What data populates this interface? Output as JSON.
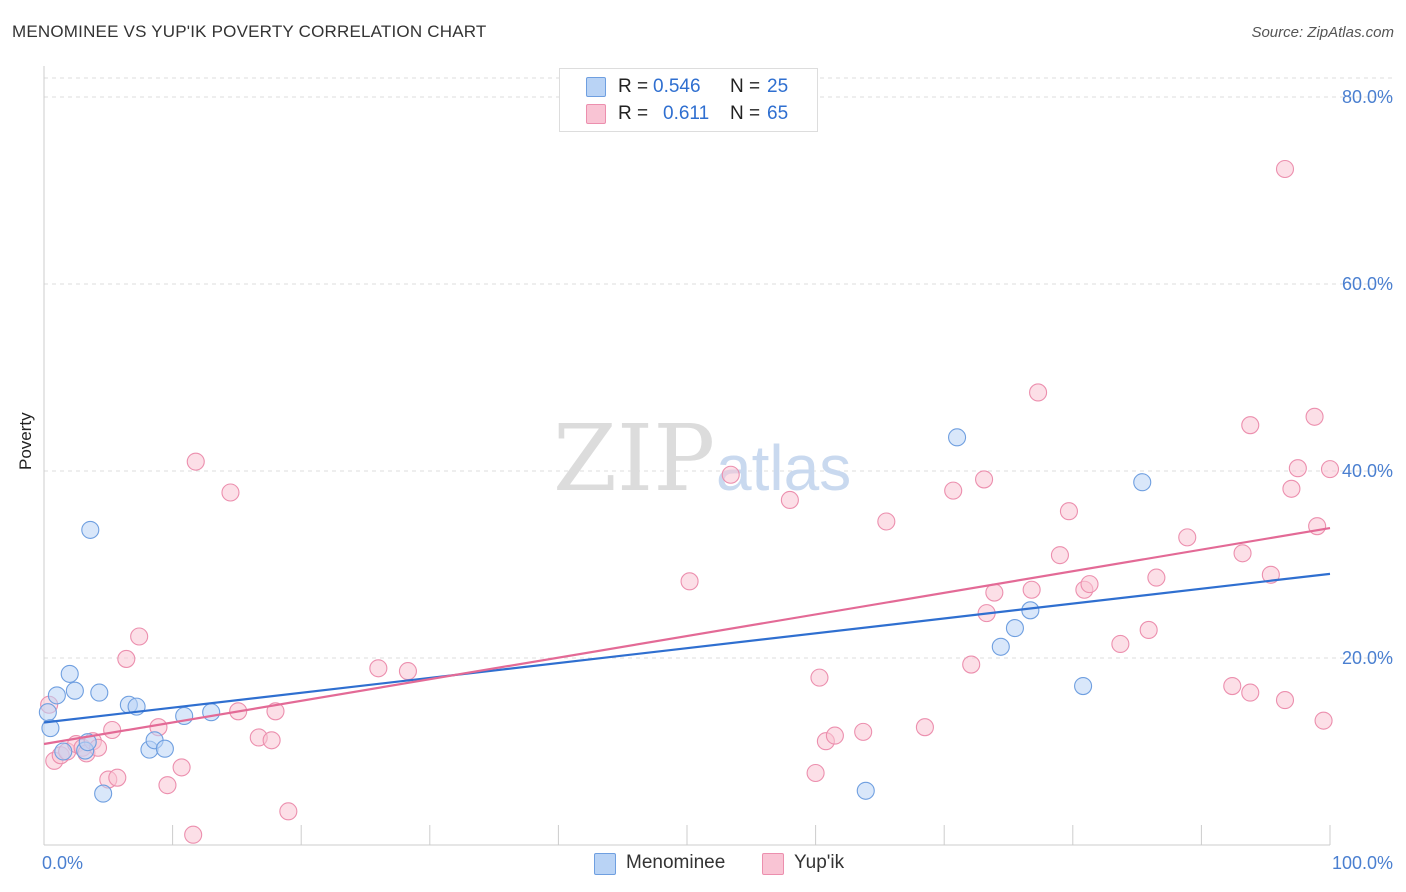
{
  "title": "MENOMINEE VS YUP'IK POVERTY CORRELATION CHART",
  "source": "Source: ZipAtlas.com",
  "watermark": {
    "part1": "ZIP",
    "part2": "atlas"
  },
  "legend": {
    "rows": [
      {
        "r_label": "R =",
        "r_value": "0.546",
        "n_label": "N =",
        "n_value": "25"
      },
      {
        "r_label": "R =",
        "r_value": "0.611",
        "n_label": "N =",
        "n_value": "65"
      }
    ],
    "bottom": [
      {
        "label": "Menominee"
      },
      {
        "label": "Yup'ik"
      }
    ]
  },
  "colors": {
    "menominee_fill": "#b9d3f5",
    "menominee_stroke": "#6f9fe0",
    "menominee_line": "#2f6fd0",
    "yupik_fill": "#f9c4d4",
    "yupik_stroke": "#ec8fae",
    "yupik_line": "#e36a96",
    "tick_label": "#4a7fd0",
    "grid": "#dddddd"
  },
  "chart_data": {
    "type": "scatter",
    "title": "MENOMINEE VS YUP'IK POVERTY CORRELATION CHART",
    "xlabel": "",
    "ylabel": "Poverty",
    "xlim": [
      0,
      100
    ],
    "ylim": [
      0,
      80
    ],
    "x_tick_labels": [
      "0.0%",
      "100.0%"
    ],
    "y_tick_labels": [
      "20.0%",
      "40.0%",
      "60.0%",
      "80.0%"
    ],
    "y_ticks": [
      20,
      40,
      60,
      80
    ],
    "series": [
      {
        "name": "Menominee",
        "r": 0.546,
        "n": 25,
        "trend": {
          "x": [
            0,
            100
          ],
          "y": [
            13.1,
            29.0
          ]
        },
        "points": [
          [
            0.3,
            14.2
          ],
          [
            0.5,
            12.5
          ],
          [
            1.0,
            16.0
          ],
          [
            2.0,
            18.3
          ],
          [
            2.4,
            16.5
          ],
          [
            1.5,
            10.0
          ],
          [
            3.2,
            10.1
          ],
          [
            3.4,
            11.0
          ],
          [
            3.6,
            33.7
          ],
          [
            4.3,
            16.3
          ],
          [
            4.6,
            5.5
          ],
          [
            6.6,
            15.0
          ],
          [
            7.2,
            14.8
          ],
          [
            8.2,
            10.2
          ],
          [
            8.6,
            11.2
          ],
          [
            9.4,
            10.3
          ],
          [
            10.9,
            13.8
          ],
          [
            13.0,
            14.2
          ],
          [
            63.9,
            5.8
          ],
          [
            71.0,
            43.6
          ],
          [
            74.4,
            21.2
          ],
          [
            75.5,
            23.2
          ],
          [
            76.7,
            25.1
          ],
          [
            80.8,
            17.0
          ],
          [
            85.4,
            38.8
          ]
        ]
      },
      {
        "name": "Yup'ik",
        "r": 0.611,
        "n": 65,
        "trend": {
          "x": [
            0,
            100
          ],
          "y": [
            10.8,
            33.9
          ]
        },
        "points": [
          [
            0.4,
            15.0
          ],
          [
            0.8,
            9.0
          ],
          [
            1.3,
            9.6
          ],
          [
            1.8,
            10.0
          ],
          [
            2.5,
            10.8
          ],
          [
            3.0,
            10.4
          ],
          [
            3.3,
            9.8
          ],
          [
            3.8,
            11.1
          ],
          [
            4.2,
            10.4
          ],
          [
            5.0,
            7.0
          ],
          [
            5.3,
            12.3
          ],
          [
            5.7,
            7.2
          ],
          [
            6.4,
            19.9
          ],
          [
            7.4,
            22.3
          ],
          [
            8.9,
            12.6
          ],
          [
            9.6,
            6.4
          ],
          [
            10.7,
            8.3
          ],
          [
            11.6,
            1.1
          ],
          [
            11.8,
            41.0
          ],
          [
            14.5,
            37.7
          ],
          [
            15.1,
            14.3
          ],
          [
            16.7,
            11.5
          ],
          [
            17.7,
            11.2
          ],
          [
            18.0,
            14.3
          ],
          [
            19.0,
            3.6
          ],
          [
            26.0,
            18.9
          ],
          [
            28.3,
            18.6
          ],
          [
            50.2,
            28.2
          ],
          [
            53.4,
            39.6
          ],
          [
            58.0,
            36.9
          ],
          [
            60.0,
            7.7
          ],
          [
            60.3,
            17.9
          ],
          [
            60.8,
            11.1
          ],
          [
            61.5,
            11.7
          ],
          [
            63.7,
            12.1
          ],
          [
            65.5,
            34.6
          ],
          [
            68.5,
            12.6
          ],
          [
            70.7,
            37.9
          ],
          [
            72.1,
            19.3
          ],
          [
            73.1,
            39.1
          ],
          [
            73.3,
            24.8
          ],
          [
            73.9,
            27.0
          ],
          [
            76.8,
            27.3
          ],
          [
            77.3,
            48.4
          ],
          [
            79.0,
            31.0
          ],
          [
            79.7,
            35.7
          ],
          [
            80.9,
            27.3
          ],
          [
            81.3,
            27.9
          ],
          [
            83.7,
            21.5
          ],
          [
            85.9,
            23.0
          ],
          [
            86.5,
            28.6
          ],
          [
            88.9,
            32.9
          ],
          [
            92.4,
            17.0
          ],
          [
            93.2,
            31.2
          ],
          [
            93.8,
            44.9
          ],
          [
            93.8,
            16.3
          ],
          [
            95.4,
            28.9
          ],
          [
            96.5,
            72.3
          ],
          [
            96.5,
            15.5
          ],
          [
            97.0,
            38.1
          ],
          [
            97.5,
            40.3
          ],
          [
            98.8,
            45.8
          ],
          [
            99.0,
            34.1
          ],
          [
            99.5,
            13.3
          ],
          [
            100.0,
            40.2
          ]
        ]
      }
    ]
  }
}
